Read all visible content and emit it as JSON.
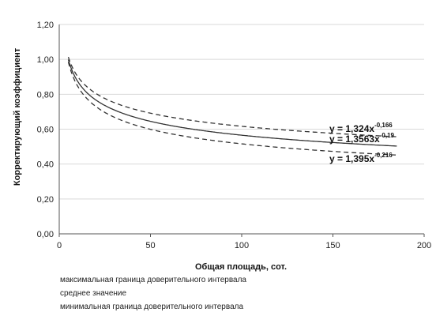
{
  "chart_data": {
    "type": "line",
    "xlabel": "Общая площадь, сот.",
    "ylabel": "Корректирующий коэффициент",
    "xlim": [
      0,
      200
    ],
    "ylim": [
      0,
      1.2
    ],
    "x_ticks": [
      "0",
      "50",
      "100",
      "150",
      "200"
    ],
    "y_ticks": [
      "0,00",
      "0,20",
      "0,40",
      "0,60",
      "0,80",
      "1,00",
      "1,20"
    ],
    "grid": true,
    "x_start": 5,
    "x_end": 185,
    "series": [
      {
        "name": "максимальная граница доверительного интервала",
        "coef": 1.324,
        "exp": -0.166,
        "dash": true,
        "equation_main": "y = 1,324x",
        "equation_exp": "-0,166"
      },
      {
        "name": "среднее значение",
        "coef": 1.3563,
        "exp": -0.19,
        "dash": false,
        "equation_main": "y = 1,3563x",
        "equation_exp": "-0,19"
      },
      {
        "name": "минимальная граница доверительного интервала",
        "coef": 1.395,
        "exp": -0.216,
        "dash": true,
        "equation_main": "y = 1,395x",
        "equation_exp": "-0,216"
      }
    ],
    "legend_position": "bottom-left",
    "line_color": "#333333",
    "grid_color": "#d9d9d9"
  }
}
